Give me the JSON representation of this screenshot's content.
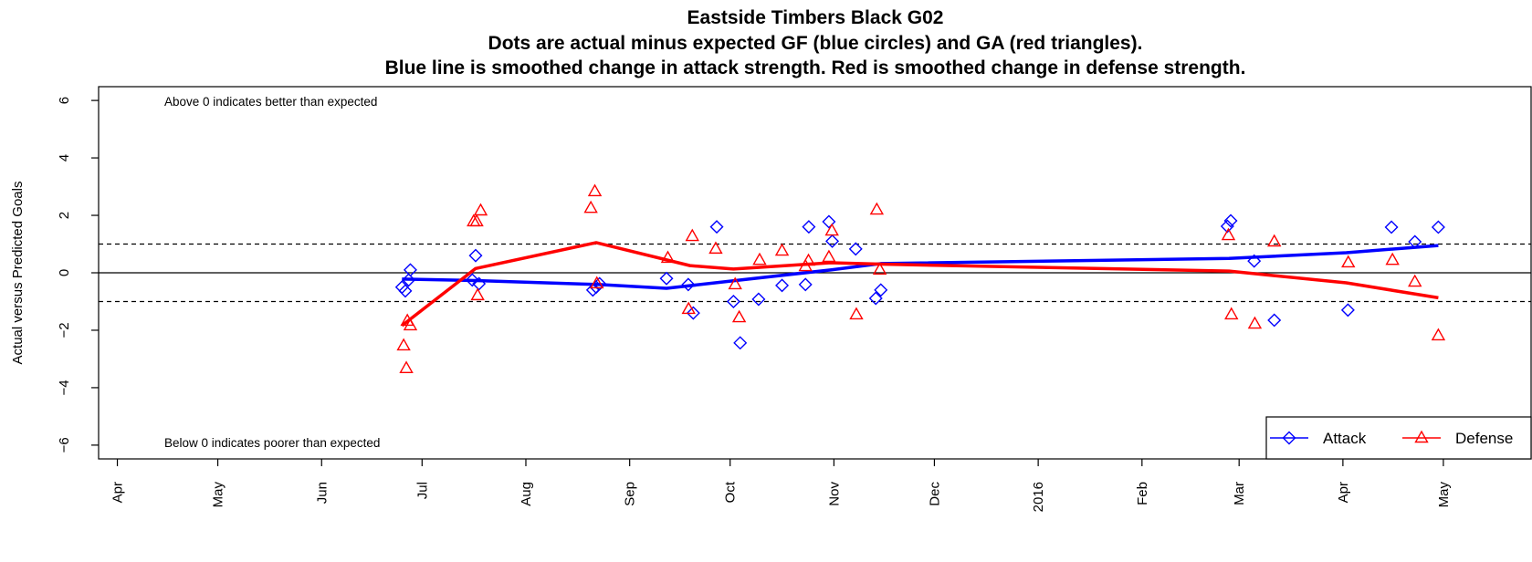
{
  "chart_data": {
    "type": "scatter",
    "title": "Eastside Timbers Black G02",
    "subtitle": [
      "Dots are actual minus expected GF (blue circles) and GA (red triangles).",
      "Blue line is smoothed change in attack strength. Red is smoothed change in defense strength."
    ],
    "y_label": "Actual versus Predicted Goals",
    "annotations": [
      "Above 0 indicates better than expected",
      "Below 0 indicates poorer than expected"
    ],
    "xlim": [
      -5.6,
      422.2
    ],
    "ylim": [
      -6.48,
      6.48
    ],
    "xticks": [
      {
        "value": 0,
        "label": "Apr"
      },
      {
        "value": 30,
        "label": "May"
      },
      {
        "value": 61,
        "label": "Jun"
      },
      {
        "value": 91,
        "label": "Jul"
      },
      {
        "value": 122,
        "label": "Aug"
      },
      {
        "value": 153,
        "label": "Sep"
      },
      {
        "value": 183,
        "label": "Oct"
      },
      {
        "value": 214,
        "label": "Nov"
      },
      {
        "value": 244,
        "label": "Dec"
      },
      {
        "value": 275,
        "label": "2016"
      },
      {
        "value": 306,
        "label": "Feb"
      },
      {
        "value": 335,
        "label": "Mar"
      },
      {
        "value": 366,
        "label": "Apr"
      },
      {
        "value": 396,
        "label": "May"
      }
    ],
    "yticks": [
      {
        "value": -6,
        "label": "−6"
      },
      {
        "value": -4,
        "label": "−4"
      },
      {
        "value": -2,
        "label": "−2"
      },
      0,
      2,
      4,
      6
    ],
    "reference_lines": [
      {
        "value": 0,
        "style": "solid"
      },
      {
        "value": 1,
        "style": "dashed"
      },
      {
        "value": -1,
        "style": "dashed"
      }
    ],
    "legend_position": "bottomright",
    "series": [
      {
        "name": "Attack",
        "color": "#0000ff",
        "marker": "diamond",
        "x": [
          85,
          86,
          87,
          87.5,
          106,
          107,
          108,
          142,
          143,
          144,
          164,
          170.5,
          172,
          179,
          184,
          186,
          191.5,
          198.5,
          205.5,
          206.5,
          212.5,
          213.5,
          220.5,
          226.5,
          228,
          331.5,
          332.5,
          339.5,
          345.5,
          367.5,
          380.5,
          387.5,
          394.5
        ],
        "values": [
          -0.5,
          -0.63,
          -0.25,
          0.1,
          -0.25,
          0.6,
          -0.38,
          -0.6,
          -0.5,
          -0.38,
          -0.2,
          -0.41,
          -1.4,
          1.6,
          -1.0,
          -2.44,
          -0.92,
          -0.44,
          -0.41,
          1.6,
          1.78,
          1.1,
          0.83,
          -0.89,
          -0.6,
          1.62,
          1.81,
          0.41,
          -1.65,
          -1.3,
          1.59,
          1.08,
          1.59
        ],
        "smooth_x": [
          85,
          107,
          144,
          164,
          213,
          228,
          332,
          367,
          394.5
        ],
        "smooth_values": [
          -0.22,
          -0.27,
          -0.41,
          -0.54,
          0.1,
          0.32,
          0.5,
          0.7,
          0.95
        ]
      },
      {
        "name": "Defense",
        "color": "#ff0000",
        "marker": "triangle",
        "x": [
          85.5,
          86.3,
          86.6,
          87.5,
          106.4,
          107.3,
          108.5,
          107.6,
          141.4,
          142.6,
          143.2,
          164.4,
          170.6,
          171.7,
          178.7,
          184.5,
          185.7,
          191.8,
          198.5,
          205.5,
          206.4,
          212.5,
          213.4,
          220.7,
          226.8,
          227.7,
          331.8,
          332.7,
          339.7,
          345.5,
          367.6,
          380.8,
          387.5,
          394.5
        ],
        "values": [
          -2.54,
          -3.33,
          -1.68,
          -1.84,
          1.78,
          1.78,
          2.16,
          -0.79,
          2.25,
          2.83,
          -0.38,
          0.51,
          -1.27,
          1.27,
          0.83,
          -0.41,
          -1.56,
          0.44,
          0.76,
          0.22,
          0.41,
          0.54,
          1.46,
          -1.46,
          2.19,
          0.1,
          1.3,
          -1.46,
          -1.78,
          1.08,
          0.35,
          0.44,
          -0.32,
          -2.19
        ],
        "smooth_x": [
          85,
          107,
          143,
          171,
          184,
          213,
          228,
          332,
          367,
          394.5
        ],
        "smooth_values": [
          -1.84,
          0.15,
          1.05,
          0.25,
          0.13,
          0.35,
          0.3,
          0.06,
          -0.35,
          -0.87
        ]
      }
    ]
  }
}
